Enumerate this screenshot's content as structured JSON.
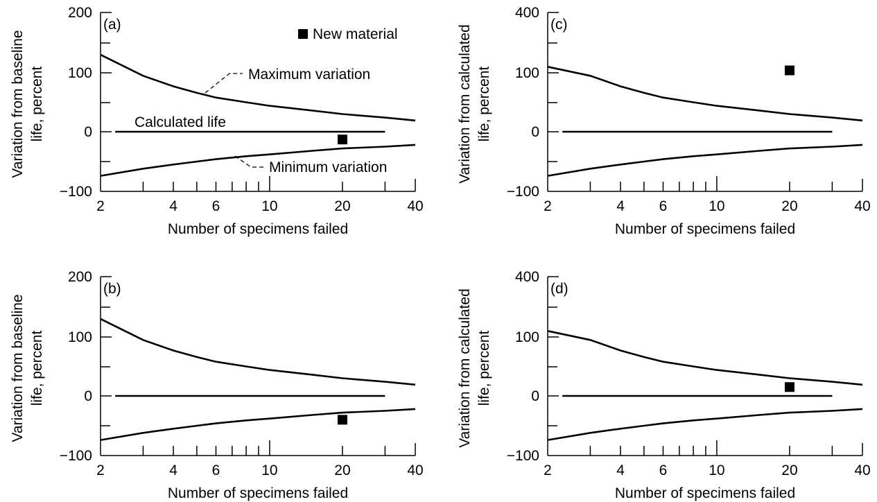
{
  "chart_data": [
    {
      "type": "line",
      "panel_label": "(a)",
      "xscale": "log",
      "xlim": [
        2,
        40
      ],
      "ylim": [
        -100,
        200
      ],
      "xticks": [
        2,
        4,
        6,
        10,
        20,
        40
      ],
      "xtick_labels": [
        "2",
        "4",
        "6",
        "10",
        "20",
        "40"
      ],
      "yticks": [
        200,
        100,
        0,
        -100
      ],
      "ytick_labels": [
        "200",
        "100",
        "0",
        "−100"
      ],
      "xlabel": "Number of specimens failed",
      "ylabel": [
        "Variation from baseline",
        "life, percent"
      ],
      "legend": {
        "label": "New material",
        "position": "top-right"
      },
      "annotations": {
        "max": "Maximum variation",
        "calc": "Calculated life",
        "min": "Minimum variation"
      },
      "upper_curve": {
        "x": [
          2,
          3,
          4,
          5,
          6,
          8,
          10,
          15,
          20,
          30,
          40
        ],
        "y": [
          130,
          95,
          77,
          66,
          58,
          50,
          44,
          36,
          30,
          24,
          19
        ]
      },
      "lower_curve": {
        "x": [
          2,
          3,
          4,
          5,
          6,
          8,
          10,
          15,
          20,
          30,
          40
        ],
        "y": [
          -74,
          -62,
          -55,
          -50,
          -46,
          -41,
          -38,
          -32,
          -28,
          -25,
          -22
        ]
      },
      "calculated_life": {
        "x": [
          2.3,
          30
        ],
        "y": [
          0,
          0
        ]
      },
      "new_material_point": {
        "x": 20,
        "y": -13
      }
    },
    {
      "type": "line",
      "panel_label": "(c)",
      "xscale": "log",
      "xlim": [
        2,
        40
      ],
      "ylim": [
        -100,
        400
      ],
      "xticks": [
        2,
        4,
        6,
        10,
        20,
        40
      ],
      "xtick_labels": [
        "2",
        "4",
        "6",
        "10",
        "20",
        "40"
      ],
      "yticks": [
        400,
        100,
        0,
        -100
      ],
      "ytick_labels": [
        "400",
        "100",
        "0",
        "−100"
      ],
      "xlabel": "Number of specimens failed",
      "ylabel": [
        "Variation from calculated",
        "life, percent"
      ],
      "upper_curve": {
        "x": [
          2,
          3,
          4,
          5,
          6,
          8,
          10,
          15,
          20,
          30,
          40
        ],
        "y": [
          130,
          95,
          77,
          66,
          58,
          50,
          44,
          36,
          30,
          24,
          19
        ]
      },
      "lower_curve": {
        "x": [
          2,
          3,
          4,
          5,
          6,
          8,
          10,
          15,
          20,
          30,
          40
        ],
        "y": [
          -74,
          -62,
          -55,
          -50,
          -46,
          -41,
          -38,
          -32,
          -28,
          -25,
          -22
        ]
      },
      "calculated_life": {
        "x": [
          2.3,
          30
        ],
        "y": [
          0,
          0
        ]
      },
      "new_material_point": {
        "x": 20,
        "y": 112
      }
    },
    {
      "type": "line",
      "panel_label": "(b)",
      "xscale": "log",
      "xlim": [
        2,
        40
      ],
      "ylim": [
        -100,
        200
      ],
      "xticks": [
        2,
        4,
        6,
        10,
        20,
        40
      ],
      "xtick_labels": [
        "2",
        "4",
        "6",
        "10",
        "20",
        "40"
      ],
      "yticks": [
        200,
        100,
        0,
        -100
      ],
      "ytick_labels": [
        "200",
        "100",
        "0",
        "−100"
      ],
      "xlabel": "Number of specimens failed",
      "ylabel": [
        "Variation from baseline",
        "life, percent"
      ],
      "upper_curve": {
        "x": [
          2,
          3,
          4,
          5,
          6,
          8,
          10,
          15,
          20,
          30,
          40
        ],
        "y": [
          130,
          95,
          77,
          66,
          58,
          50,
          44,
          36,
          30,
          24,
          19
        ]
      },
      "lower_curve": {
        "x": [
          2,
          3,
          4,
          5,
          6,
          8,
          10,
          15,
          20,
          30,
          40
        ],
        "y": [
          -74,
          -62,
          -55,
          -50,
          -46,
          -41,
          -38,
          -32,
          -28,
          -25,
          -22
        ]
      },
      "calculated_life": {
        "x": [
          2.3,
          30
        ],
        "y": [
          0,
          0
        ]
      },
      "new_material_point": {
        "x": 20,
        "y": -40
      }
    },
    {
      "type": "line",
      "panel_label": "(d)",
      "xscale": "log",
      "xlim": [
        2,
        40
      ],
      "ylim": [
        -100,
        400
      ],
      "xticks": [
        2,
        4,
        6,
        10,
        20,
        40
      ],
      "xtick_labels": [
        "2",
        "4",
        "6",
        "10",
        "20",
        "40"
      ],
      "yticks": [
        400,
        100,
        0,
        -100
      ],
      "ytick_labels": [
        "400",
        "100",
        "0",
        "−100"
      ],
      "xlabel": "Number of specimens failed",
      "ylabel": [
        "Variation from calculated",
        "life, percent"
      ],
      "upper_curve": {
        "x": [
          2,
          3,
          4,
          5,
          6,
          8,
          10,
          15,
          20,
          30,
          40
        ],
        "y": [
          130,
          95,
          77,
          66,
          58,
          50,
          44,
          36,
          30,
          24,
          19
        ]
      },
      "lower_curve": {
        "x": [
          2,
          3,
          4,
          5,
          6,
          8,
          10,
          15,
          20,
          30,
          40
        ],
        "y": [
          -74,
          -62,
          -55,
          -50,
          -46,
          -41,
          -38,
          -32,
          -28,
          -25,
          -22
        ]
      },
      "calculated_life": {
        "x": [
          2.3,
          30
        ],
        "y": [
          0,
          0
        ]
      },
      "new_material_point": {
        "x": 20,
        "y": 15
      }
    }
  ]
}
